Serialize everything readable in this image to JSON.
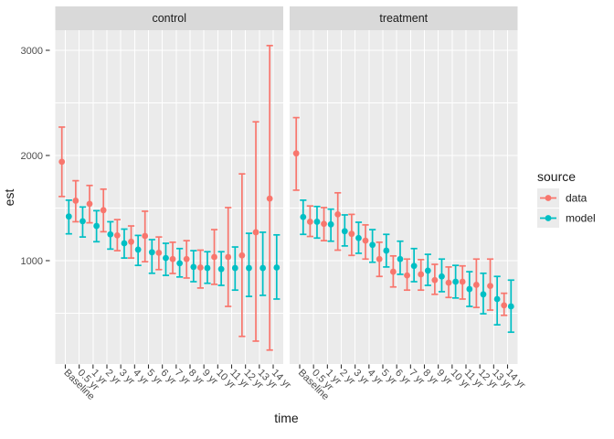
{
  "chart_data": {
    "type": "scatter",
    "subtype": "point-with-errorbar, dodged series, two facets",
    "xlabel": "time",
    "ylabel": "est",
    "y_ticks": [
      1000,
      2000,
      3000
    ],
    "y_minor": [
      500,
      1500,
      2500
    ],
    "ylim": [
      20,
      3190
    ],
    "grid": "on",
    "categories": [
      "Baseline",
      "0.5 yr",
      "1 yr",
      "2 yr",
      "3 yr",
      "4 yr",
      "5 yr",
      "6 yr",
      "7 yr",
      "8 yr",
      "9 yr",
      "10 yr",
      "11 yr",
      "12 yr",
      "13 yr",
      "14 yr"
    ],
    "facets": [
      {
        "label": "control",
        "series": [
          {
            "name": "data",
            "color": "#F8766D",
            "est": [
              1940,
              1570,
              1540,
              1480,
              1240,
              1180,
              1235,
              1075,
              1015,
              1015,
              935,
              1035,
              1035,
              1050,
              1270,
              1590
            ],
            "lo": [
              1610,
              1370,
              1360,
              1275,
              1095,
              1025,
              990,
              915,
              878,
              835,
              740,
              775,
              565,
              280,
              235,
              150
            ],
            "hi": [
              2270,
              1760,
              1715,
              1680,
              1390,
              1330,
              1470,
              1225,
              1175,
              1190,
              1100,
              1295,
              1505,
              1825,
              2320,
              3045
            ]
          },
          {
            "name": "model",
            "color": "#00BFC4",
            "est": [
              1420,
              1375,
              1330,
              1250,
              1165,
              1105,
              1080,
              1025,
              975,
              940,
              930,
              920,
              930,
              930,
              930,
              935
            ],
            "lo": [
              1255,
              1225,
              1180,
              1110,
              1025,
              955,
              880,
              860,
              845,
              800,
              785,
              765,
              720,
              660,
              670,
              635
            ],
            "hi": [
              1575,
              1510,
              1475,
              1370,
              1300,
              1240,
              1200,
              1165,
              1115,
              1095,
              1085,
              1085,
              1130,
              1260,
              1270,
              1245
            ]
          }
        ]
      },
      {
        "label": "treatment",
        "series": [
          {
            "name": "data",
            "color": "#F8766D",
            "est": [
              2020,
              1370,
              1350,
              1440,
              1255,
              1190,
              1015,
              895,
              860,
              870,
              815,
              790,
              800,
              770,
              760,
              575
            ],
            "lo": [
              1670,
              1230,
              1190,
              1100,
              1050,
              1015,
              850,
              750,
              720,
              720,
              680,
              650,
              635,
              555,
              530,
              480
            ],
            "hi": [
              2360,
              1520,
              1505,
              1645,
              1440,
              1340,
              1175,
              1045,
              1015,
              1010,
              965,
              940,
              950,
              1015,
              1015,
              690
            ]
          },
          {
            "name": "model",
            "color": "#00BFC4",
            "est": [
              1415,
              1370,
              1345,
              1280,
              1215,
              1150,
              1095,
              1015,
              950,
              905,
              850,
              800,
              730,
              680,
              635,
              565
            ],
            "lo": [
              1250,
              1215,
              1185,
              1140,
              1070,
              985,
              940,
              870,
              800,
              765,
              705,
              645,
              565,
              495,
              390,
              320
            ],
            "hi": [
              1575,
              1515,
              1490,
              1435,
              1365,
              1295,
              1250,
              1185,
              1115,
              1060,
              1015,
              955,
              895,
              880,
              850,
              815
            ]
          }
        ]
      }
    ],
    "legend": {
      "title": "source",
      "position": "right",
      "entries": [
        {
          "label": "data",
          "color": "#F8766D"
        },
        {
          "label": "model",
          "color": "#00BFC4"
        }
      ]
    }
  },
  "style": {
    "background": "#FFFFFF",
    "panel_bg": "#EBEBEB",
    "strip_bg": "#D9D9D9",
    "grid_color": "#FFFFFF",
    "tick_color": "#333333",
    "tick_label_color": "#4D4D4D",
    "title_color": "#1A1A1A",
    "legend_key_bg": "#EBEBEB"
  }
}
